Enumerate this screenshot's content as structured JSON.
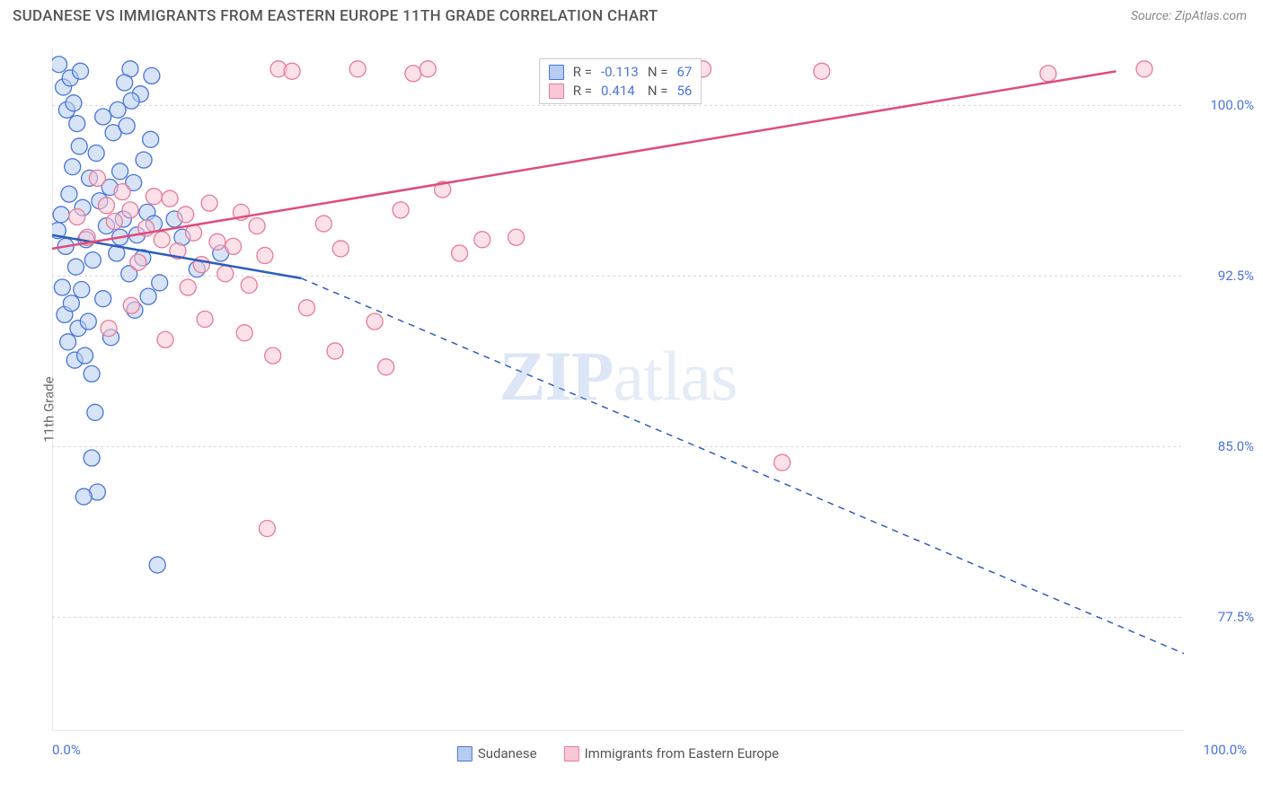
{
  "header": {
    "title": "SUDANESE VS IMMIGRANTS FROM EASTERN EUROPE 11TH GRADE CORRELATION CHART",
    "source": "Source: ZipAtlas.com"
  },
  "chart": {
    "type": "scatter",
    "ylabel": "11th Grade",
    "xlim": [
      0,
      100
    ],
    "ylim": [
      72.5,
      102.5
    ],
    "x_ticks_minor": [
      0,
      20,
      40,
      60,
      80,
      100
    ],
    "x_tick_labels": [
      {
        "v": 0,
        "t": "0.0%"
      },
      {
        "v": 100,
        "t": "100.0%"
      }
    ],
    "y_tick_labels": [
      {
        "v": 77.5,
        "t": "77.5%"
      },
      {
        "v": 85,
        "t": "85.0%"
      },
      {
        "v": 92.5,
        "t": "92.5%"
      },
      {
        "v": 100,
        "t": "100.0%"
      }
    ],
    "grid_color": "#d8d8d8",
    "axis_color": "#cfcfcf",
    "background_color": "#ffffff",
    "watermark": {
      "part1": "ZIP",
      "part2": "atlas"
    },
    "series": [
      {
        "name": "Sudanese",
        "color_stroke": "#4a74d8",
        "color_fill": "#b6cdf0",
        "marker_radius": 9,
        "trend": {
          "x1": 0,
          "y1": 94.3,
          "x2": 22,
          "y2": 92.4,
          "solid_end_x": 22,
          "dash_to_x": 100,
          "dash_to_y": 75.9,
          "color": "#2d5dbb",
          "width": 2.5
        },
        "points": [
          [
            0.5,
            94.5
          ],
          [
            0.8,
            95.2
          ],
          [
            1.2,
            93.8
          ],
          [
            1.5,
            96.1
          ],
          [
            1.8,
            97.3
          ],
          [
            2.1,
            92.9
          ],
          [
            2.4,
            98.2
          ],
          [
            2.7,
            95.5
          ],
          [
            3.0,
            94.1
          ],
          [
            3.3,
            96.8
          ],
          [
            3.6,
            93.2
          ],
          [
            3.9,
            97.9
          ],
          [
            4.2,
            95.8
          ],
          [
            4.5,
            99.5
          ],
          [
            4.8,
            94.7
          ],
          [
            5.1,
            96.4
          ],
          [
            5.4,
            98.8
          ],
          [
            5.7,
            93.5
          ],
          [
            6.0,
            97.1
          ],
          [
            6.3,
            95.0
          ],
          [
            6.6,
            99.1
          ],
          [
            6.9,
            101.6
          ],
          [
            7.2,
            96.6
          ],
          [
            7.5,
            94.3
          ],
          [
            7.8,
            100.5
          ],
          [
            8.1,
            97.6
          ],
          [
            8.4,
            95.3
          ],
          [
            8.7,
            98.5
          ],
          [
            0.9,
            92.0
          ],
          [
            1.1,
            90.8
          ],
          [
            1.4,
            89.6
          ],
          [
            1.7,
            91.3
          ],
          [
            2.0,
            88.8
          ],
          [
            2.3,
            90.2
          ],
          [
            2.6,
            91.9
          ],
          [
            2.9,
            89.0
          ],
          [
            3.2,
            90.5
          ],
          [
            3.5,
            88.2
          ],
          [
            0.6,
            101.8
          ],
          [
            1.0,
            100.8
          ],
          [
            1.3,
            99.8
          ],
          [
            1.6,
            101.2
          ],
          [
            1.9,
            100.1
          ],
          [
            2.2,
            99.2
          ],
          [
            2.5,
            101.5
          ],
          [
            5.8,
            99.8
          ],
          [
            6.4,
            101.0
          ],
          [
            7.0,
            100.2
          ],
          [
            8.8,
            101.3
          ],
          [
            3.5,
            84.5
          ],
          [
            4.0,
            83.0
          ],
          [
            3.8,
            86.5
          ],
          [
            9.3,
            79.8
          ],
          [
            2.8,
            82.8
          ],
          [
            4.5,
            91.5
          ],
          [
            5.2,
            89.8
          ],
          [
            6.0,
            94.2
          ],
          [
            6.8,
            92.6
          ],
          [
            7.3,
            91.0
          ],
          [
            8.0,
            93.3
          ],
          [
            8.5,
            91.6
          ],
          [
            9.0,
            94.8
          ],
          [
            9.5,
            92.2
          ],
          [
            10.8,
            95.0
          ],
          [
            11.5,
            94.2
          ],
          [
            12.8,
            92.8
          ],
          [
            14.9,
            93.5
          ]
        ]
      },
      {
        "name": "Immigrants from Eastern Europe",
        "color_stroke": "#e67a99",
        "color_fill": "#f9c8d6",
        "marker_radius": 9,
        "trend": {
          "x1": 0,
          "y1": 93.7,
          "x2": 94,
          "y2": 101.5,
          "color": "#de4d7a",
          "width": 2.5
        },
        "points": [
          [
            2.2,
            95.1
          ],
          [
            3.1,
            94.2
          ],
          [
            4.0,
            96.8
          ],
          [
            4.8,
            95.6
          ],
          [
            5.5,
            94.9
          ],
          [
            6.2,
            96.2
          ],
          [
            6.9,
            95.4
          ],
          [
            7.6,
            93.1
          ],
          [
            8.3,
            94.6
          ],
          [
            9.0,
            96.0
          ],
          [
            9.7,
            94.1
          ],
          [
            10.4,
            95.9
          ],
          [
            11.1,
            93.6
          ],
          [
            11.8,
            95.2
          ],
          [
            12.5,
            94.4
          ],
          [
            13.2,
            93.0
          ],
          [
            13.9,
            95.7
          ],
          [
            14.6,
            94.0
          ],
          [
            15.3,
            92.6
          ],
          [
            16.0,
            93.8
          ],
          [
            16.7,
            95.3
          ],
          [
            17.4,
            92.1
          ],
          [
            18.1,
            94.7
          ],
          [
            18.8,
            93.4
          ],
          [
            20.0,
            101.6
          ],
          [
            21.2,
            101.5
          ],
          [
            22.5,
            91.1
          ],
          [
            24.0,
            94.8
          ],
          [
            19.5,
            89.0
          ],
          [
            17.0,
            90.0
          ],
          [
            25.5,
            93.7
          ],
          [
            27.0,
            101.6
          ],
          [
            28.5,
            90.5
          ],
          [
            29.5,
            88.5
          ],
          [
            30.8,
            95.4
          ],
          [
            31.9,
            101.4
          ],
          [
            33.2,
            101.6
          ],
          [
            34.5,
            96.3
          ],
          [
            36.0,
            93.5
          ],
          [
            38.0,
            94.1
          ],
          [
            41.0,
            94.2
          ],
          [
            45.0,
            101.6
          ],
          [
            48.5,
            101.5
          ],
          [
            55.5,
            101.5
          ],
          [
            57.5,
            101.6
          ],
          [
            64.5,
            84.3
          ],
          [
            68.0,
            101.5
          ],
          [
            88.0,
            101.4
          ],
          [
            96.5,
            101.6
          ],
          [
            10.0,
            89.7
          ],
          [
            13.5,
            90.6
          ],
          [
            19.0,
            81.4
          ],
          [
            25.0,
            89.2
          ],
          [
            5.0,
            90.2
          ],
          [
            7.0,
            91.2
          ],
          [
            12.0,
            92.0
          ]
        ]
      }
    ],
    "stats_box": {
      "left_pct": 43,
      "top_pct": 1.5,
      "rows": [
        {
          "color_stroke": "#4a74d8",
          "color_fill": "#b6cdf0",
          "r": "-0.113",
          "n": "67"
        },
        {
          "color_stroke": "#e67a99",
          "color_fill": "#f9c8d6",
          "r": "0.414",
          "n": "56"
        }
      ],
      "r_label": "R =",
      "n_label": "N ="
    }
  },
  "legend": {
    "items": [
      {
        "label": "Sudanese",
        "color_stroke": "#4a74d8",
        "color_fill": "#b6cdf0"
      },
      {
        "label": "Immigrants from Eastern Europe",
        "color_stroke": "#e67a99",
        "color_fill": "#f9c8d6"
      }
    ]
  }
}
